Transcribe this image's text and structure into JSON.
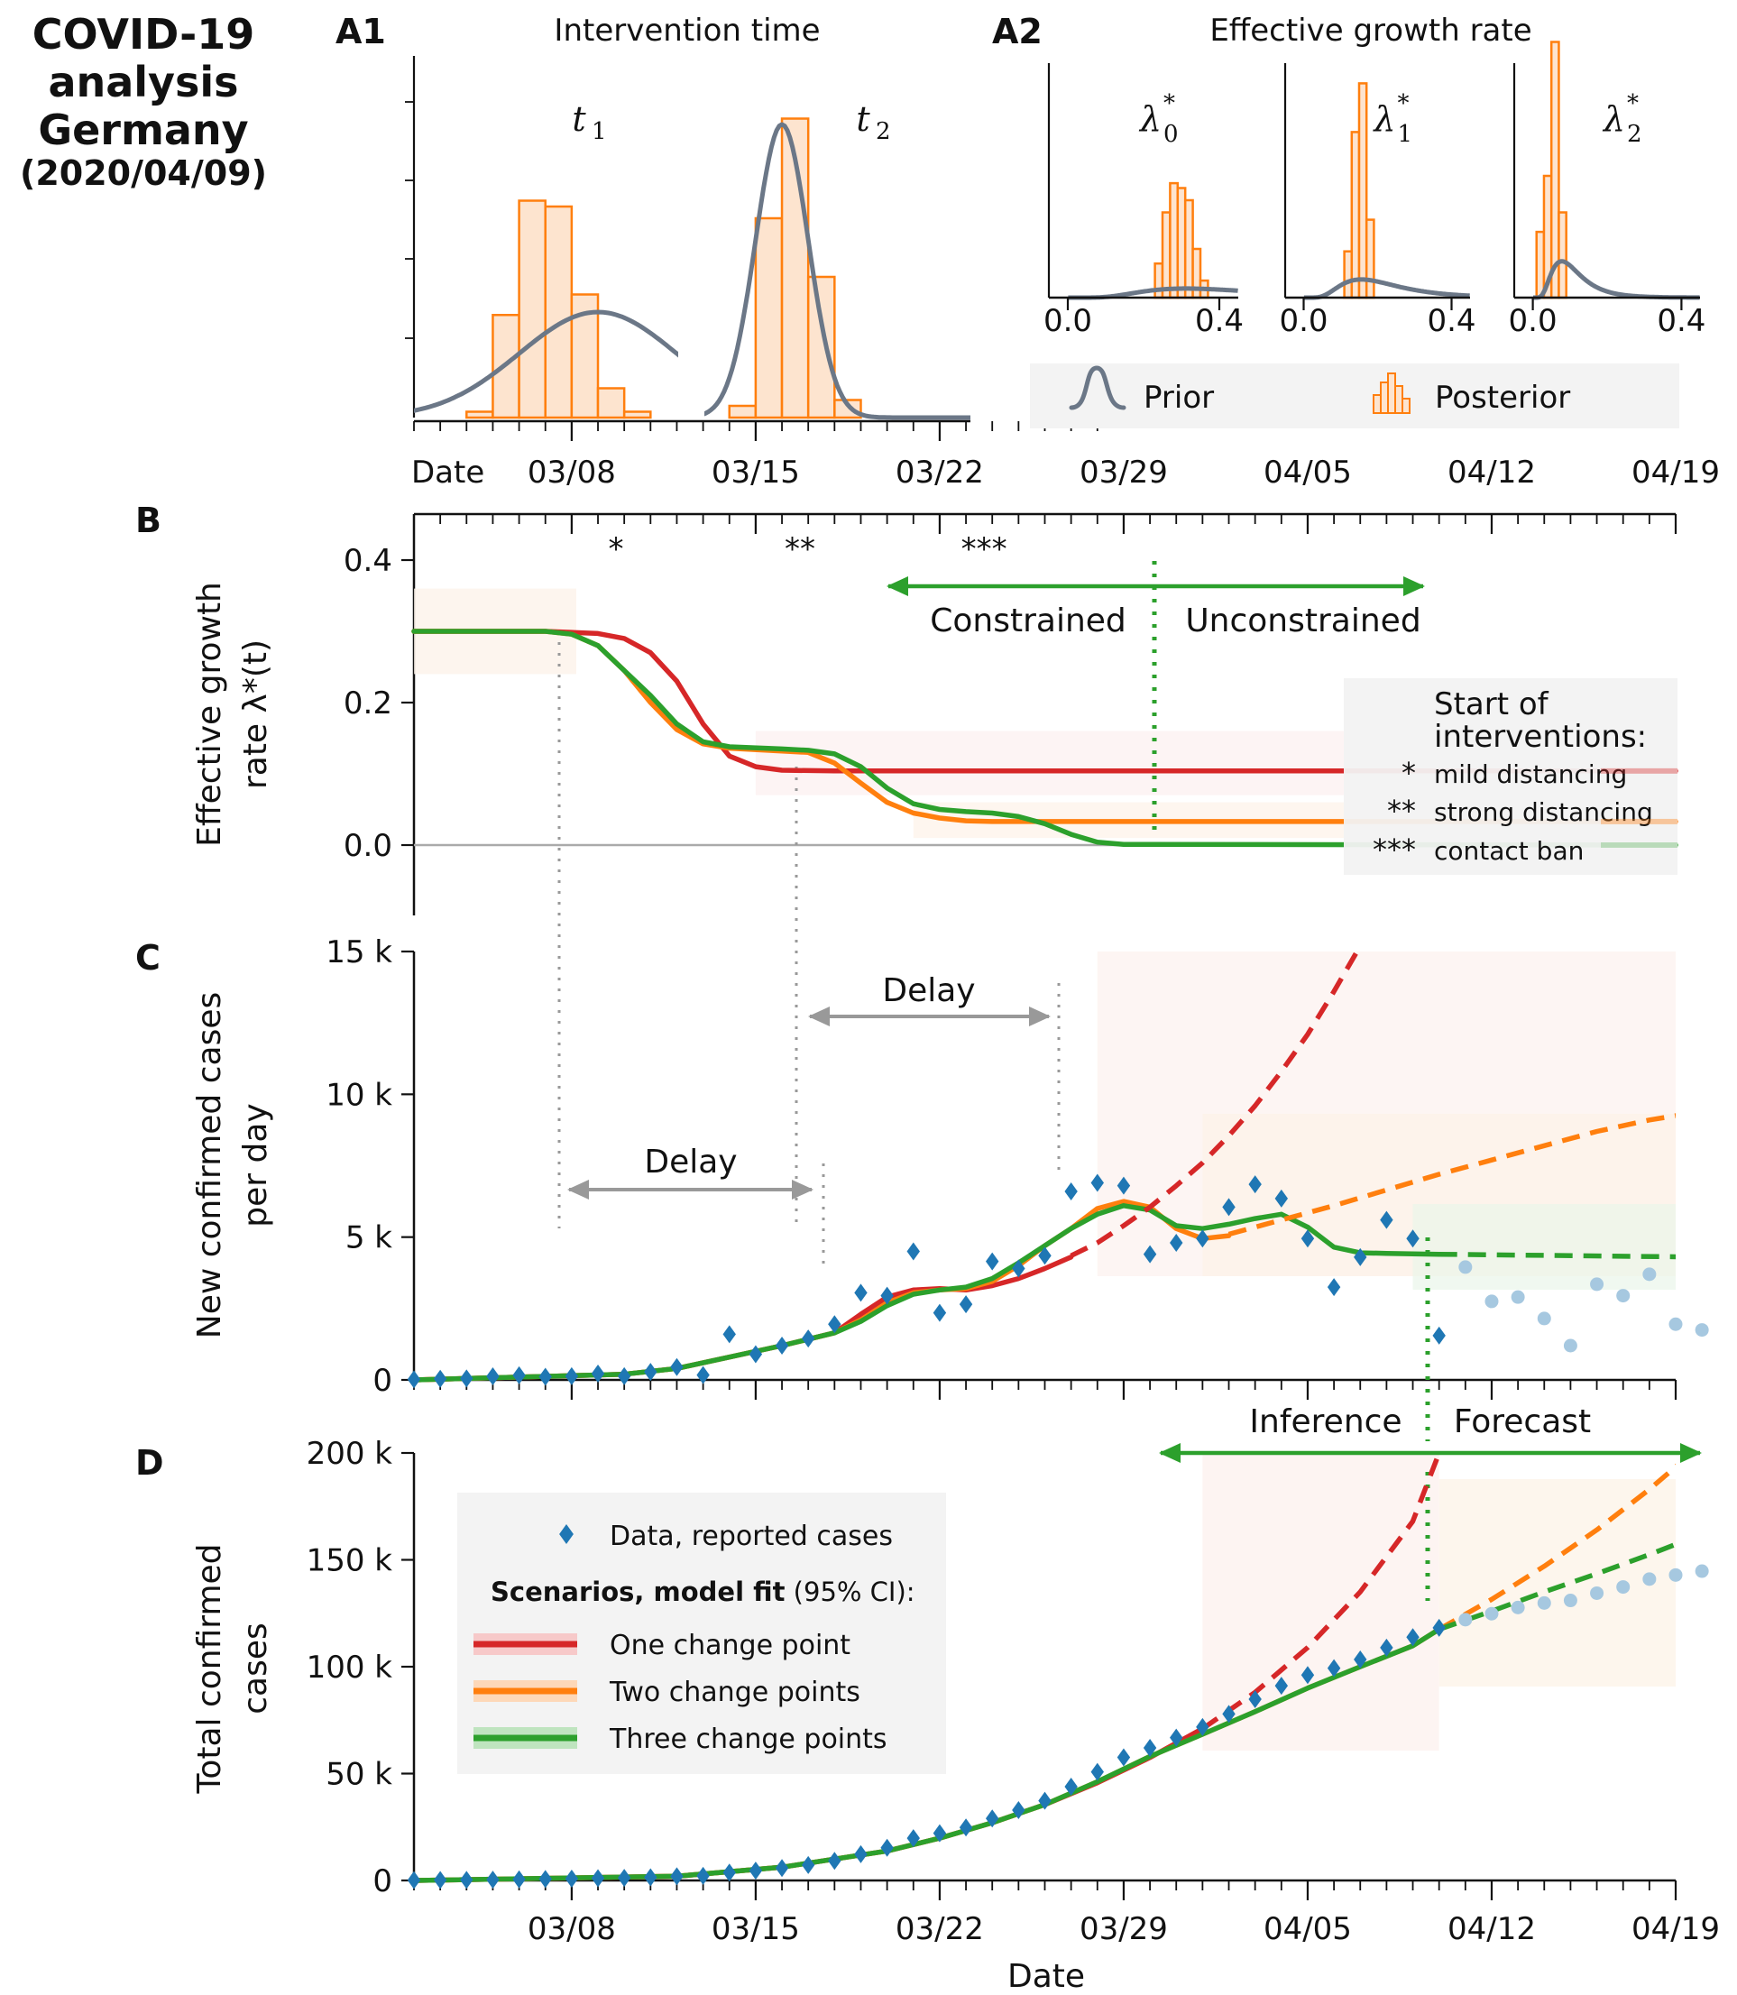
{
  "figure": {
    "title_lines": [
      "COVID-19",
      "analysis",
      "Germany"
    ],
    "title_date": "(2020/04/09)",
    "xlabel": "Date",
    "top_axis_label": "Date",
    "dates": [
      "03/08",
      "03/15",
      "03/22",
      "03/29",
      "04/05",
      "04/12",
      "04/19"
    ],
    "colors": {
      "one": "#d62728",
      "two": "#ff7f0e",
      "three": "#2ca02c",
      "data": "#1f77b4",
      "forecast_data": "#a6c8e0",
      "prior": "#6b7787",
      "posterior": "#ff7f0e",
      "guide": "#999999",
      "delay": "#999999"
    }
  },
  "chart_data": [
    {
      "id": "A1",
      "panel_label": "A1",
      "title": "Intervention time",
      "type": "histogram",
      "subpanels": [
        {
          "label": "t1",
          "posterior": {
            "bin_edges": [
              "03/04",
              "03/05",
              "03/06",
              "03/07",
              "03/08",
              "03/09",
              "03/10",
              "03/11"
            ],
            "heights": [
              0.02,
              0.35,
              0.74,
              0.72,
              0.42,
              0.1,
              0.02
            ]
          },
          "prior": {
            "type": "gaussian",
            "mean": "03/09",
            "sd_days": 3
          }
        },
        {
          "label": "t2",
          "posterior": {
            "bin_edges": [
              "03/14",
              "03/15",
              "03/16",
              "03/17",
              "03/18",
              "03/19"
            ],
            "heights": [
              0.04,
              0.68,
              1.02,
              0.48,
              0.06
            ]
          },
          "prior": {
            "type": "gaussian",
            "mean": "03/16",
            "sd_days": 1
          }
        }
      ]
    },
    {
      "id": "A2",
      "panel_label": "A2",
      "title": "Effective growth rate",
      "type": "histogram",
      "xticks": [
        "0.0",
        "0.4"
      ],
      "xlim": [
        -0.05,
        0.45
      ],
      "subpanels": [
        {
          "label": "λ*0",
          "posterior_bins": [
            [
              0.23,
              0.25,
              0.14
            ],
            [
              0.25,
              0.27,
              0.35
            ],
            [
              0.27,
              0.29,
              0.47
            ],
            [
              0.29,
              0.31,
              0.45
            ],
            [
              0.31,
              0.33,
              0.4
            ],
            [
              0.33,
              0.35,
              0.2
            ],
            [
              0.35,
              0.37,
              0.07
            ]
          ],
          "prior": {
            "type": "lognormal",
            "median": 0.4,
            "sigma": 0.5
          }
        },
        {
          "label": "λ*1",
          "posterior_bins": [
            [
              0.11,
              0.13,
              0.19
            ],
            [
              0.13,
              0.15,
              0.68
            ],
            [
              0.15,
              0.17,
              0.88
            ],
            [
              0.17,
              0.19,
              0.32
            ]
          ],
          "prior": {
            "type": "lognormal",
            "median": 0.2,
            "sigma": 0.5
          }
        },
        {
          "label": "λ*2",
          "posterior_bins": [
            [
              0.01,
              0.03,
              0.27
            ],
            [
              0.03,
              0.05,
              0.5
            ],
            [
              0.05,
              0.07,
              1.05
            ],
            [
              0.07,
              0.09,
              0.35
            ]
          ],
          "prior": {
            "type": "lognormal",
            "median": 0.1,
            "sigma": 0.5
          }
        }
      ],
      "legend": [
        "Prior",
        "Posterior"
      ]
    },
    {
      "id": "B",
      "panel_label": "B",
      "type": "line",
      "ylabel_lines": [
        "Effective growth",
        "rate λ*(t)"
      ],
      "ylim": [
        -0.1,
        0.45
      ],
      "yticks": [
        "0.0",
        "0.2",
        "0.4"
      ],
      "x_days_start": "03/02",
      "series": [
        {
          "key": "one",
          "x_days": [
            0,
            5,
            7,
            8,
            9,
            10,
            11,
            12,
            13,
            14,
            16,
            48
          ],
          "y": [
            0.3,
            0.3,
            0.297,
            0.29,
            0.27,
            0.23,
            0.17,
            0.125,
            0.11,
            0.105,
            0.104,
            0.104
          ]
        },
        {
          "key": "two",
          "x_days": [
            0,
            5,
            6,
            7,
            8,
            9,
            10,
            11,
            12,
            14,
            15,
            16,
            17,
            18,
            19,
            20,
            21,
            22,
            48
          ],
          "y": [
            0.3,
            0.3,
            0.296,
            0.28,
            0.245,
            0.2,
            0.162,
            0.142,
            0.136,
            0.132,
            0.13,
            0.115,
            0.087,
            0.06,
            0.045,
            0.038,
            0.034,
            0.033,
            0.033
          ]
        },
        {
          "key": "three",
          "x_days": [
            0,
            5,
            6,
            7,
            8,
            9,
            10,
            11,
            12,
            14,
            15,
            16,
            17,
            18,
            19,
            20,
            21,
            22,
            23,
            24,
            25,
            26,
            27,
            48
          ],
          "y": [
            0.3,
            0.3,
            0.296,
            0.28,
            0.245,
            0.21,
            0.17,
            0.145,
            0.138,
            0.135,
            0.133,
            0.128,
            0.11,
            0.08,
            0.058,
            0.05,
            0.047,
            0.045,
            0.04,
            0.03,
            0.015,
            0.004,
            0.001,
            0.0
          ]
        }
      ],
      "markers": [
        {
          "symbol": "*",
          "date": "03/09"
        },
        {
          "symbol": "**",
          "date": "03/16"
        },
        {
          "symbol": "***",
          "date": "03/23"
        }
      ],
      "arrow_left_label": "Constrained",
      "arrow_right_label": "Unconstrained",
      "legend_title_lines": [
        "Start of",
        "interventions:"
      ],
      "legend_items": [
        {
          "symbol": "*",
          "label": "mild distancing"
        },
        {
          "symbol": "**",
          "label": "strong distancing"
        },
        {
          "symbol": "***",
          "label": "contact ban"
        }
      ]
    },
    {
      "id": "C",
      "panel_label": "C",
      "type": "line",
      "ylabel_lines": [
        "New confirmed cases",
        "per day"
      ],
      "ylim": [
        0,
        15000
      ],
      "yticks": [
        "0",
        "5 k",
        "10 k",
        "15 k"
      ],
      "x_days_start": "03/02",
      "data": {
        "x_days": [
          0,
          1,
          2,
          3,
          4,
          5,
          6,
          7,
          8,
          9,
          10,
          11,
          12,
          13,
          14,
          15,
          16,
          17,
          18,
          19,
          20,
          21,
          22,
          23,
          24,
          25,
          26,
          27,
          28,
          29,
          30,
          31,
          32,
          33,
          34,
          35,
          36,
          37,
          38,
          39
        ],
        "y": [
          18,
          40,
          53,
          125,
          160,
          112,
          130,
          220,
          130,
          280,
          450,
          170,
          1600,
          900,
          1200,
          1450,
          1950,
          3050,
          2950,
          4500,
          2350,
          2650,
          4150,
          3900,
          4350,
          6600,
          6900,
          6800,
          4400,
          4800,
          4950,
          6050,
          6850,
          6350,
          4950,
          3250,
          4300,
          5600,
          4950,
          1550
        ]
      },
      "forecast_data": {
        "x_days": [
          40,
          41,
          42,
          43,
          44,
          45,
          46,
          47,
          48,
          49
        ],
        "y": [
          3950,
          2750,
          2900,
          2150,
          1200,
          3350,
          2950,
          3700,
          1950,
          1750
        ]
      },
      "fit_series": [
        {
          "key": "one",
          "x_days": [
            0,
            8,
            10,
            12,
            14,
            16,
            17,
            18,
            19,
            20,
            21,
            22,
            23,
            24,
            25
          ],
          "y": [
            0,
            200,
            400,
            800,
            1200,
            1650,
            2300,
            2900,
            3150,
            3200,
            3150,
            3300,
            3550,
            3900,
            4300
          ]
        },
        {
          "key": "two",
          "x_days": [
            0,
            8,
            10,
            12,
            14,
            16,
            17,
            18,
            19,
            20,
            21,
            22,
            23,
            24,
            25,
            26,
            27,
            28,
            29,
            30,
            31
          ],
          "y": [
            0,
            200,
            400,
            800,
            1200,
            1650,
            2100,
            2700,
            3050,
            3150,
            3200,
            3450,
            4000,
            4700,
            5300,
            6000,
            6250,
            6050,
            5300,
            4950,
            5050
          ]
        },
        {
          "key": "three",
          "x_days": [
            0,
            8,
            10,
            12,
            14,
            16,
            17,
            18,
            19,
            20,
            21,
            22,
            23,
            24,
            25,
            26,
            27,
            28,
            29,
            30,
            31,
            32,
            33,
            34,
            35,
            36,
            37,
            38,
            39
          ],
          "y": [
            0,
            200,
            400,
            800,
            1200,
            1650,
            2050,
            2600,
            3000,
            3150,
            3250,
            3550,
            4100,
            4700,
            5300,
            5800,
            6100,
            5950,
            5400,
            5300,
            5450,
            5650,
            5800,
            5350,
            4650,
            4450,
            4430,
            4410,
            4400
          ]
        }
      ],
      "forecast_series": [
        {
          "key": "one",
          "x_days": [
            25,
            26,
            27,
            28,
            29,
            30,
            31,
            32,
            33,
            34,
            35,
            36
          ],
          "y": [
            4350,
            4800,
            5400,
            6050,
            6800,
            7600,
            8550,
            9600,
            10800,
            12100,
            13600,
            15200
          ]
        },
        {
          "key": "two",
          "x_days": [
            31,
            33,
            35,
            37,
            39,
            41,
            43,
            45,
            47,
            49
          ],
          "y": [
            5100,
            5600,
            6100,
            6650,
            7200,
            7700,
            8200,
            8700,
            9100,
            9400
          ]
        },
        {
          "key": "three",
          "x_days": [
            39,
            49
          ],
          "y": [
            4400,
            4300
          ]
        }
      ],
      "delay_labels": [
        "Delay",
        "Delay"
      ]
    },
    {
      "id": "D",
      "panel_label": "D",
      "type": "line",
      "ylabel_lines": [
        "Total confirmed",
        "cases"
      ],
      "ylim": [
        0,
        200000
      ],
      "yticks": [
        "0",
        "50 k",
        "100 k",
        "150 k",
        "200 k"
      ],
      "x_days_start": "03/02",
      "data": {
        "x_days": [
          0,
          1,
          2,
          3,
          4,
          5,
          6,
          7,
          8,
          9,
          10,
          11,
          12,
          13,
          14,
          15,
          16,
          17,
          18,
          19,
          20,
          21,
          22,
          23,
          24,
          25,
          26,
          27,
          28,
          29,
          30,
          31,
          32,
          33,
          34,
          35,
          36,
          37,
          38,
          39
        ],
        "y": [
          150,
          200,
          260,
          380,
          550,
          700,
          850,
          1050,
          1200,
          1500,
          1950,
          2150,
          3700,
          4600,
          5800,
          7250,
          9200,
          12300,
          15300,
          19800,
          22100,
          24800,
          29000,
          32900,
          37300,
          43900,
          50800,
          57600,
          62000,
          66800,
          71800,
          77900,
          84800,
          91100,
          96100,
          99300,
          103400,
          108900,
          113800,
          118200
        ]
      },
      "forecast_data": {
        "x_days": [
          40,
          41,
          42,
          43,
          44,
          45,
          46,
          47,
          48,
          49
        ],
        "y": [
          122000,
          124800,
          127700,
          129800,
          131000,
          134400,
          137300,
          141000,
          142900,
          144700
        ]
      },
      "fit_series": [
        {
          "key": "one",
          "x_days": [
            0,
            10,
            14,
            18,
            20,
            22,
            24,
            26,
            28,
            30
          ],
          "y": [
            0,
            2000,
            6200,
            13800,
            19800,
            27000,
            35500,
            45700,
            57500,
            71000
          ]
        },
        {
          "key": "two",
          "x_days": [
            0,
            10,
            14,
            18,
            20,
            22,
            24,
            26,
            28,
            30,
            32,
            34,
            36,
            38,
            39
          ],
          "y": [
            0,
            2000,
            6200,
            13800,
            19800,
            27000,
            35500,
            46200,
            58000,
            68400,
            79000,
            90000,
            100000,
            109800,
            117500
          ]
        },
        {
          "key": "three",
          "x_days": [
            0,
            10,
            14,
            18,
            20,
            22,
            24,
            26,
            28,
            30,
            32,
            34,
            36,
            38,
            39
          ],
          "y": [
            0,
            2000,
            6200,
            13800,
            19800,
            27000,
            35500,
            46200,
            58000,
            68400,
            79000,
            90000,
            100000,
            109800,
            117500
          ]
        }
      ],
      "forecast_series": [
        {
          "key": "one",
          "x_days": [
            30,
            32,
            34,
            36,
            38,
            39
          ],
          "y": [
            71000,
            88000,
            109000,
            135000,
            168000,
            200000
          ]
        },
        {
          "key": "two",
          "x_days": [
            39,
            41,
            43,
            45,
            47,
            49
          ],
          "y": [
            117500,
            131500,
            147000,
            164000,
            183000,
            204000
          ]
        },
        {
          "key": "three",
          "x_days": [
            39,
            41,
            43,
            45,
            47,
            49
          ],
          "y": [
            117500,
            126000,
            135000,
            143500,
            152500,
            162000
          ]
        }
      ],
      "arrow_left_label": "Inference",
      "arrow_right_label": "Forecast",
      "legend": {
        "data_label": "Data, reported cases",
        "scenario_header_bold": "Scenarios, model fit",
        "scenario_header_rest": " (95% CI):",
        "items": [
          {
            "key": "one",
            "label": "One change point"
          },
          {
            "key": "two",
            "label": "Two change points"
          },
          {
            "key": "three",
            "label": "Three change points"
          }
        ]
      }
    }
  ]
}
